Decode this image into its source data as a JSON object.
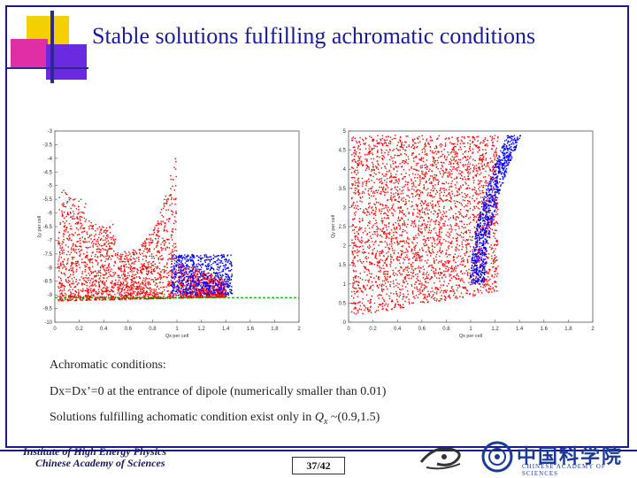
{
  "slide": {
    "title": "Stable solutions fulfilling achromatic conditions",
    "lines": [
      "Achromatic conditions:",
      "Dx=Dx’=0 at the entrance of dipole (numerically smaller than 0.01)",
      "Solutions fulfilling achomatic condition exist only in "
    ],
    "line3_var": "Q",
    "line3_sub": "x",
    "line3_tail": " ~(0.9,1.5)",
    "page": "37/42"
  },
  "footer": {
    "institute_line1": "Institute of High Energy Physics",
    "institute_line2": "Chinese Academy of Sciences",
    "cas_cn": "中国科学院",
    "cas_en": "CHINESE ACADEMY OF SCIENCES"
  },
  "colors": {
    "frame": "#1a1a8c",
    "title": "#1a1aa0",
    "red": "#ff0000",
    "blue": "#0000ff",
    "green": "#00b000"
  },
  "chart_data": [
    {
      "type": "scatter",
      "xlabel": "Qx per cell",
      "ylabel": "ξy per cell",
      "xlim": [
        0,
        2
      ],
      "ylim": [
        -10,
        -3
      ],
      "x_ticks": [
        "0",
        "0.2",
        "0.4",
        "0.6",
        "0.8",
        "1",
        "1.2",
        "1.4",
        "1.6",
        "1.8",
        "2"
      ],
      "y_ticks": [
        "-3",
        "-3.5",
        "-4",
        "-4.5",
        "-5",
        "-5.5",
        "-6",
        "-6.5",
        "-7",
        "-7.5",
        "-8",
        "-8.5",
        "-9",
        "-9.5",
        "-10"
      ],
      "reference_line_y": -9.1
    },
    {
      "type": "scatter",
      "xlabel": "Qx per cell",
      "ylabel": "Qy per cell",
      "xlim": [
        0,
        2
      ],
      "ylim": [
        0,
        5
      ],
      "x_ticks": [
        "0",
        "0.2",
        "0.4",
        "0.6",
        "0.8",
        "1",
        "1.2",
        "1.4",
        "1.6",
        "1.8",
        "2"
      ],
      "y_ticks": [
        "0",
        "0.5",
        "1",
        "1.5",
        "2",
        "2.5",
        "3",
        "3.5",
        "4",
        "4.5",
        "5"
      ]
    }
  ]
}
